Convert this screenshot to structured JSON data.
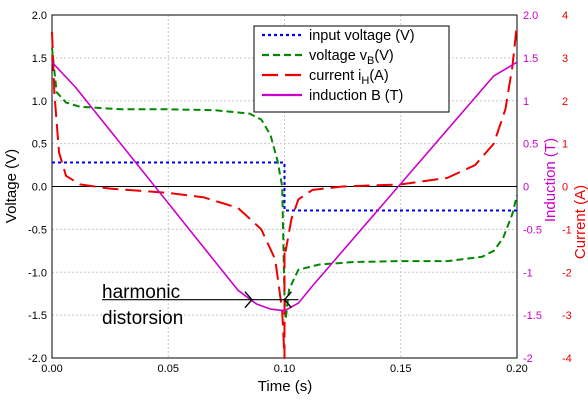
{
  "chart_data": {
    "type": "line",
    "title": "",
    "xlabel": "Time (s)",
    "xlim": [
      0,
      0.2
    ],
    "x_ticks": [
      "0.00",
      "0.05",
      "0.10",
      "0.15",
      "0.20"
    ],
    "grid": true,
    "legend_position": "top-right",
    "axes": {
      "voltage": {
        "label": "Voltage (V)",
        "range": [
          -2,
          2
        ],
        "ticks": [
          "-2.0",
          "-1.5",
          "-1.0",
          "-0.5",
          "0.0",
          "0.5",
          "1.0",
          "1.5",
          "2.0"
        ],
        "color": "#000000"
      },
      "induction": {
        "label": "Induction (T)",
        "range": [
          -2,
          2
        ],
        "ticks": [
          "-2",
          "-1.5",
          "-1",
          "-0.5",
          "0",
          "0.5",
          "1",
          "1.5",
          "2.0"
        ],
        "color": "#cc00cc"
      },
      "current": {
        "label": "Current (A)",
        "range": [
          -4,
          4
        ],
        "ticks": [
          "-4",
          "-3",
          "-2",
          "-1",
          "0",
          "1",
          "2",
          "3",
          "4"
        ],
        "color": "#ee0000"
      }
    },
    "series": [
      {
        "name": "input voltage (V)",
        "axis": "voltage",
        "color": "#0000ee",
        "dash": "dotted",
        "points": [
          [
            0.0,
            0.28
          ],
          [
            0.1,
            0.28
          ],
          [
            0.1,
            -0.28
          ],
          [
            0.2,
            -0.28
          ]
        ]
      },
      {
        "name_main": "voltage v",
        "name_sub": "B",
        "name_tail": "(V)",
        "axis": "voltage",
        "color": "#008800",
        "dash": "dashed",
        "points": [
          [
            0.0,
            1.62
          ],
          [
            0.002,
            1.1
          ],
          [
            0.006,
            0.98
          ],
          [
            0.012,
            0.93
          ],
          [
            0.03,
            0.9
          ],
          [
            0.05,
            0.9
          ],
          [
            0.07,
            0.89
          ],
          [
            0.085,
            0.85
          ],
          [
            0.09,
            0.78
          ],
          [
            0.094,
            0.6
          ],
          [
            0.097,
            0.3
          ],
          [
            0.099,
            0.0
          ],
          [
            0.1,
            -1.3
          ],
          [
            0.1005,
            -1.55
          ],
          [
            0.102,
            -1.2
          ],
          [
            0.106,
            -0.97
          ],
          [
            0.115,
            -0.91
          ],
          [
            0.13,
            -0.88
          ],
          [
            0.15,
            -0.87
          ],
          [
            0.17,
            -0.87
          ],
          [
            0.185,
            -0.82
          ],
          [
            0.19,
            -0.75
          ],
          [
            0.194,
            -0.6
          ],
          [
            0.198,
            -0.32
          ],
          [
            0.2,
            -0.1
          ]
        ]
      },
      {
        "name_main": "current i",
        "name_sub": "H",
        "name_tail": "(A)",
        "axis": "current",
        "color": "#ee0000",
        "dash": "longdash",
        "points": [
          [
            0.0,
            3.6
          ],
          [
            0.001,
            2.2
          ],
          [
            0.003,
            0.8
          ],
          [
            0.006,
            0.25
          ],
          [
            0.012,
            0.05
          ],
          [
            0.025,
            -0.05
          ],
          [
            0.05,
            -0.15
          ],
          [
            0.065,
            -0.25
          ],
          [
            0.08,
            -0.5
          ],
          [
            0.09,
            -1.0
          ],
          [
            0.096,
            -1.7
          ],
          [
            0.099,
            -2.9
          ],
          [
            0.1,
            -4.0
          ],
          [
            0.1,
            -1.4
          ],
          [
            0.1005,
            -1.5
          ],
          [
            0.103,
            -0.75
          ],
          [
            0.106,
            -0.3
          ],
          [
            0.112,
            -0.08
          ],
          [
            0.125,
            0.0
          ],
          [
            0.15,
            0.05
          ],
          [
            0.17,
            0.2
          ],
          [
            0.182,
            0.5
          ],
          [
            0.19,
            1.0
          ],
          [
            0.195,
            1.8
          ],
          [
            0.198,
            2.8
          ],
          [
            0.2,
            3.8
          ]
        ]
      },
      {
        "name": "induction B (T)",
        "axis": "induction",
        "color": "#cc00cc",
        "dash": "solid",
        "points": [
          [
            0.0,
            1.45
          ],
          [
            0.01,
            1.16
          ],
          [
            0.08,
            -1.21
          ],
          [
            0.088,
            -1.37
          ],
          [
            0.094,
            -1.43
          ],
          [
            0.1,
            -1.45
          ],
          [
            0.106,
            -1.36
          ],
          [
            0.112,
            -1.16
          ],
          [
            0.19,
            1.29
          ],
          [
            0.2,
            1.45
          ]
        ]
      }
    ],
    "annotations": [
      {
        "text_line1": "harmonic",
        "text_line2": "distorsion",
        "x_start": 0.086,
        "x_end": 0.1,
        "y": -1.32
      }
    ]
  }
}
